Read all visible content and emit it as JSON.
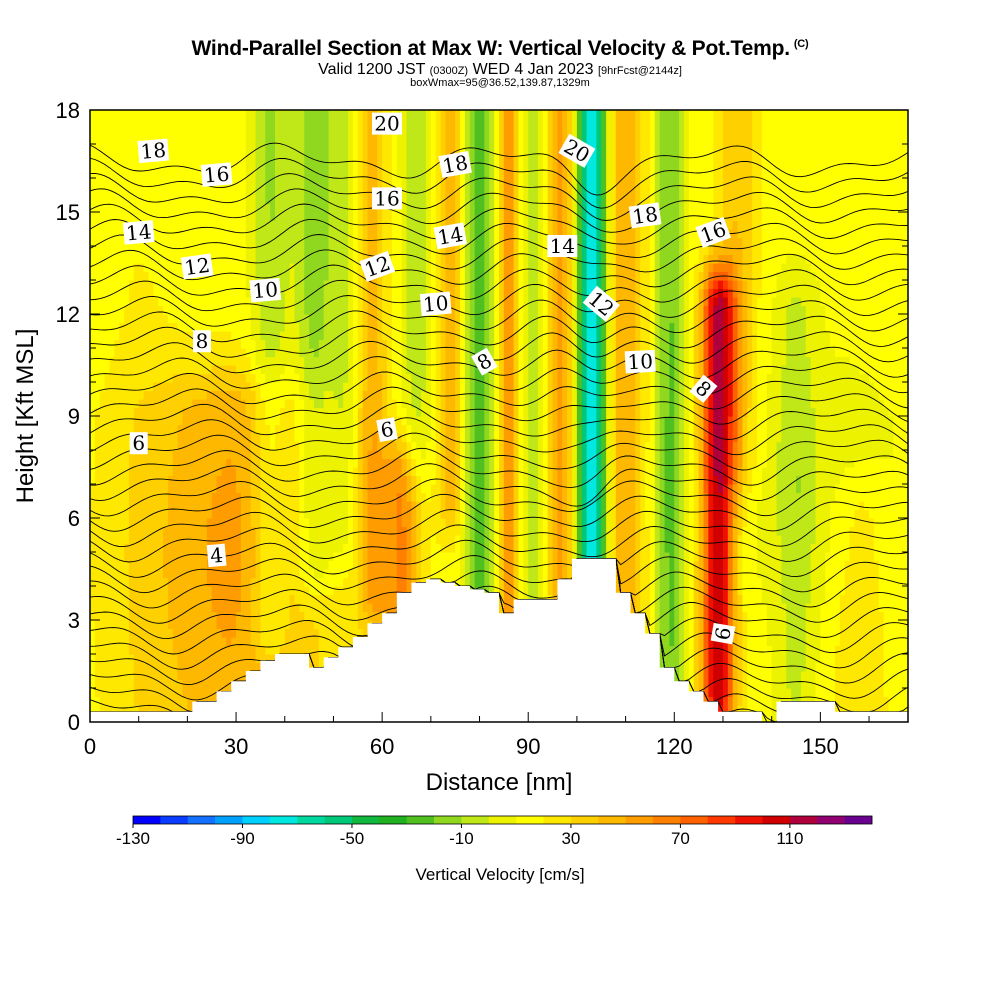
{
  "header": {
    "title_main": "Wind-Parallel Section at Max W: Vertical Velocity & Pot.Temp.",
    "title_mark": "(C)",
    "valid_prefix": "Valid 1200 JST",
    "valid_utc": "(0300Z)",
    "valid_date": "WED 4 Jan 2023",
    "forecast_note": "[9hrFcst@2144z]",
    "box_info": "boxWmax=95@36.52,139.87,1329m"
  },
  "colorbar": {
    "title": "Vertical Velocity [cm/s]",
    "tick_labels": [
      "-130",
      "-90",
      "-50",
      "-10",
      "30",
      "70",
      "110"
    ],
    "levels": [
      -130,
      -120,
      -110,
      -100,
      -90,
      -80,
      -70,
      -60,
      -50,
      -40,
      -30,
      -20,
      -10,
      0,
      10,
      20,
      30,
      40,
      50,
      60,
      70,
      80,
      90,
      100,
      110,
      120,
      130,
      140
    ],
    "colors": [
      "#0000ff",
      "#0a3cff",
      "#1470ff",
      "#00a0ff",
      "#00d0ff",
      "#00e8e0",
      "#00d8a0",
      "#00c878",
      "#10b840",
      "#20b020",
      "#50c020",
      "#90d820",
      "#c0e818",
      "#ecf200",
      "#ffff00",
      "#ffe800",
      "#ffd000",
      "#ffb800",
      "#ff9c00",
      "#ff8000",
      "#ff6000",
      "#ff3800",
      "#f01000",
      "#d00000",
      "#b0003c",
      "#900070",
      "#6a0090"
    ]
  },
  "chart_data": {
    "type": "heatmap",
    "title": "Wind-Parallel Section at Max W: Vertical Velocity & Pot.Temp.",
    "xlabel": "Distance [nm]",
    "ylabel": "Height [Kft MSL]",
    "xlim": [
      0,
      168
    ],
    "ylim": [
      0,
      18
    ],
    "x_ticks": [
      0,
      30,
      60,
      90,
      120,
      150
    ],
    "y_ticks": [
      0,
      3,
      6,
      9,
      12,
      15,
      18
    ],
    "colorbar_label": "Vertical Velocity [cm/s]",
    "w_max_cms": 95,
    "w_features": [
      {
        "x": 10,
        "w": 8,
        "ztop": 18,
        "zbot": 0,
        "value": 5
      },
      {
        "x": 30,
        "w": 18,
        "ztop": 9,
        "zbot": 0,
        "value": 25
      },
      {
        "x": 37,
        "w": 4,
        "ztop": 18,
        "zbot": 3,
        "value": -25
      },
      {
        "x": 46,
        "w": 4,
        "ztop": 18,
        "zbot": 5,
        "value": -30
      },
      {
        "x": 52,
        "w": 3,
        "ztop": 18,
        "zbot": 6,
        "value": -20
      },
      {
        "x": 58,
        "w": 3,
        "ztop": 18,
        "zbot": 4,
        "value": 30
      },
      {
        "x": 64,
        "w": 4,
        "ztop": 7,
        "zbot": 2,
        "value": 45
      },
      {
        "x": 67,
        "w": 3,
        "ztop": 18,
        "zbot": 8,
        "value": -20
      },
      {
        "x": 74,
        "w": 2.5,
        "ztop": 18,
        "zbot": 7,
        "value": 35
      },
      {
        "x": 80,
        "w": 3,
        "ztop": 18,
        "zbot": 2,
        "value": -40
      },
      {
        "x": 86,
        "w": 2.5,
        "ztop": 18,
        "zbot": 3,
        "value": 40
      },
      {
        "x": 91,
        "w": 2.5,
        "ztop": 18,
        "zbot": 3,
        "value": -25
      },
      {
        "x": 97,
        "w": 3,
        "ztop": 18,
        "zbot": 4,
        "value": 40
      },
      {
        "x": 103,
        "w": 3,
        "ztop": 18,
        "zbot": 0,
        "value": -95
      },
      {
        "x": 110,
        "w": 4,
        "ztop": 18,
        "zbot": 2,
        "value": 35
      },
      {
        "x": 119,
        "w": 3,
        "ztop": 18,
        "zbot": 0,
        "value": -35
      },
      {
        "x": 129,
        "w": 3.5,
        "ztop": 12,
        "zbot": 1,
        "value": 95
      },
      {
        "x": 133,
        "w": 4,
        "ztop": 18,
        "zbot": 8,
        "value": 25
      },
      {
        "x": 145,
        "w": 4,
        "ztop": 12,
        "zbot": 0,
        "value": -15
      },
      {
        "x": 158,
        "w": 6,
        "ztop": 6,
        "zbot": 0,
        "value": 15
      }
    ],
    "terrain": {
      "x": [
        0,
        20,
        21,
        23,
        26,
        29,
        32,
        35,
        38,
        44,
        45,
        48,
        51,
        54,
        57,
        60,
        63,
        66,
        69,
        72,
        75,
        78,
        81,
        84,
        87,
        90,
        93,
        96,
        99,
        102,
        105,
        108,
        111,
        114,
        117,
        120,
        123,
        126,
        129,
        132,
        135,
        138,
        141,
        144,
        147,
        150,
        153,
        156,
        159,
        162,
        165,
        168
      ],
      "z": [
        0.3,
        0.3,
        0.6,
        0.6,
        0.9,
        1.2,
        1.5,
        1.8,
        2.0,
        2.0,
        1.6,
        1.9,
        2.2,
        2.5,
        2.9,
        3.2,
        3.8,
        4.1,
        4.2,
        4.1,
        4.0,
        3.9,
        3.8,
        3.2,
        3.6,
        3.6,
        3.6,
        4.2,
        4.8,
        4.8,
        4.8,
        3.8,
        3.2,
        2.6,
        1.6,
        1.2,
        0.9,
        0.6,
        0.3,
        0.3,
        0.3,
        0.0,
        0.6,
        0.6,
        0.6,
        0.6,
        0.3,
        0.3,
        0.3,
        0.3,
        0.3,
        0.3
      ]
    },
    "theta_contours": {
      "levels": [
        4,
        6,
        8,
        10,
        12,
        14,
        16,
        18,
        20
      ],
      "labels": [
        {
          "text": "18",
          "x": 13,
          "y": 16.8,
          "rot": -5
        },
        {
          "text": "16",
          "x": 26,
          "y": 16.1,
          "rot": -5
        },
        {
          "text": "14",
          "x": 10,
          "y": 14.4,
          "rot": -5
        },
        {
          "text": "12",
          "x": 22,
          "y": 13.4,
          "rot": -8
        },
        {
          "text": "10",
          "x": 36,
          "y": 12.7,
          "rot": -5
        },
        {
          "text": "8",
          "x": 23,
          "y": 11.2,
          "rot": 0
        },
        {
          "text": "6",
          "x": 10,
          "y": 8.2,
          "rot": 0
        },
        {
          "text": "4",
          "x": 26,
          "y": 4.9,
          "rot": -5
        },
        {
          "text": "20",
          "x": 61,
          "y": 17.6,
          "rot": 0
        },
        {
          "text": "16",
          "x": 61,
          "y": 15.4,
          "rot": 0
        },
        {
          "text": "12",
          "x": 59,
          "y": 13.4,
          "rot": -20
        },
        {
          "text": "6",
          "x": 61,
          "y": 8.6,
          "rot": -10
        },
        {
          "text": "18",
          "x": 75,
          "y": 16.4,
          "rot": -10
        },
        {
          "text": "14",
          "x": 74,
          "y": 14.3,
          "rot": -10
        },
        {
          "text": "10",
          "x": 71,
          "y": 12.3,
          "rot": -5
        },
        {
          "text": "8",
          "x": 81,
          "y": 10.6,
          "rot": -30
        },
        {
          "text": "20",
          "x": 100,
          "y": 16.8,
          "rot": 30
        },
        {
          "text": "14",
          "x": 97,
          "y": 14.0,
          "rot": 0
        },
        {
          "text": "12",
          "x": 105,
          "y": 12.3,
          "rot": 40
        },
        {
          "text": "18",
          "x": 114,
          "y": 14.9,
          "rot": -8
        },
        {
          "text": "10",
          "x": 113,
          "y": 10.6,
          "rot": -3
        },
        {
          "text": "16",
          "x": 128,
          "y": 14.4,
          "rot": -20
        },
        {
          "text": "8",
          "x": 126,
          "y": 9.8,
          "rot": 40
        },
        {
          "text": "6",
          "x": 130,
          "y": 2.6,
          "rot": -80
        }
      ]
    }
  }
}
